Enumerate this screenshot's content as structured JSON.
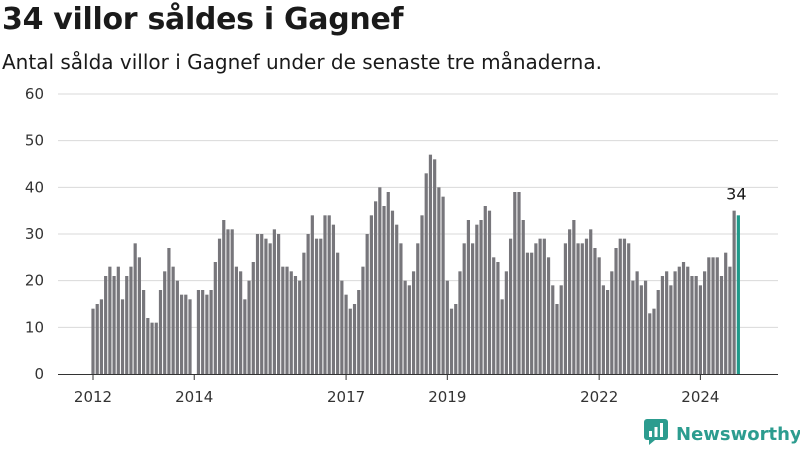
{
  "title": "34 villor såldes i Gagnef",
  "subtitle": "Antal sålda villor i Gagnef under de senaste tre månaderna.",
  "brand": "Newsworthy",
  "colors": {
    "bar": "#77767b",
    "highlight": "#1f9a8a",
    "grid": "#d9d9d9",
    "brand": "#2c9c8f"
  },
  "chart_data": {
    "type": "bar",
    "x_start": "2012-01",
    "x_tick_labels": [
      "2012",
      "2014",
      "2017",
      "2019",
      "2022",
      "2024"
    ],
    "x_tick_positions": [
      "2012-01",
      "2014-01",
      "2017-01",
      "2019-01",
      "2022-01",
      "2024-01"
    ],
    "ylim": [
      0,
      60
    ],
    "yticks": [
      0,
      10,
      20,
      30,
      40,
      50,
      60
    ],
    "grid": true,
    "highlight_last": true,
    "last_value_label": "34",
    "values": [
      14,
      15,
      16,
      21,
      23,
      21,
      23,
      16,
      21,
      23,
      28,
      25,
      18,
      12,
      11,
      11,
      18,
      22,
      27,
      23,
      20,
      17,
      17,
      16,
      null,
      18,
      18,
      17,
      18,
      24,
      29,
      33,
      31,
      31,
      23,
      22,
      16,
      20,
      24,
      30,
      30,
      29,
      28,
      31,
      30,
      23,
      23,
      22,
      21,
      20,
      26,
      30,
      34,
      29,
      29,
      34,
      34,
      32,
      26,
      20,
      17,
      14,
      15,
      18,
      23,
      30,
      34,
      37,
      40,
      36,
      39,
      35,
      32,
      28,
      20,
      19,
      22,
      28,
      34,
      43,
      47,
      46,
      40,
      38,
      20,
      14,
      15,
      22,
      28,
      33,
      28,
      32,
      33,
      36,
      35,
      25,
      24,
      16,
      22,
      29,
      39,
      39,
      33,
      26,
      26,
      28,
      29,
      29,
      25,
      19,
      15,
      19,
      28,
      31,
      33,
      28,
      28,
      29,
      31,
      27,
      25,
      19,
      18,
      22,
      27,
      29,
      29,
      28,
      20,
      22,
      19,
      20,
      13,
      14,
      18,
      21,
      22,
      19,
      22,
      23,
      24,
      23,
      21,
      21,
      19,
      22,
      25,
      25,
      25,
      21,
      26,
      23,
      35,
      34
    ]
  }
}
